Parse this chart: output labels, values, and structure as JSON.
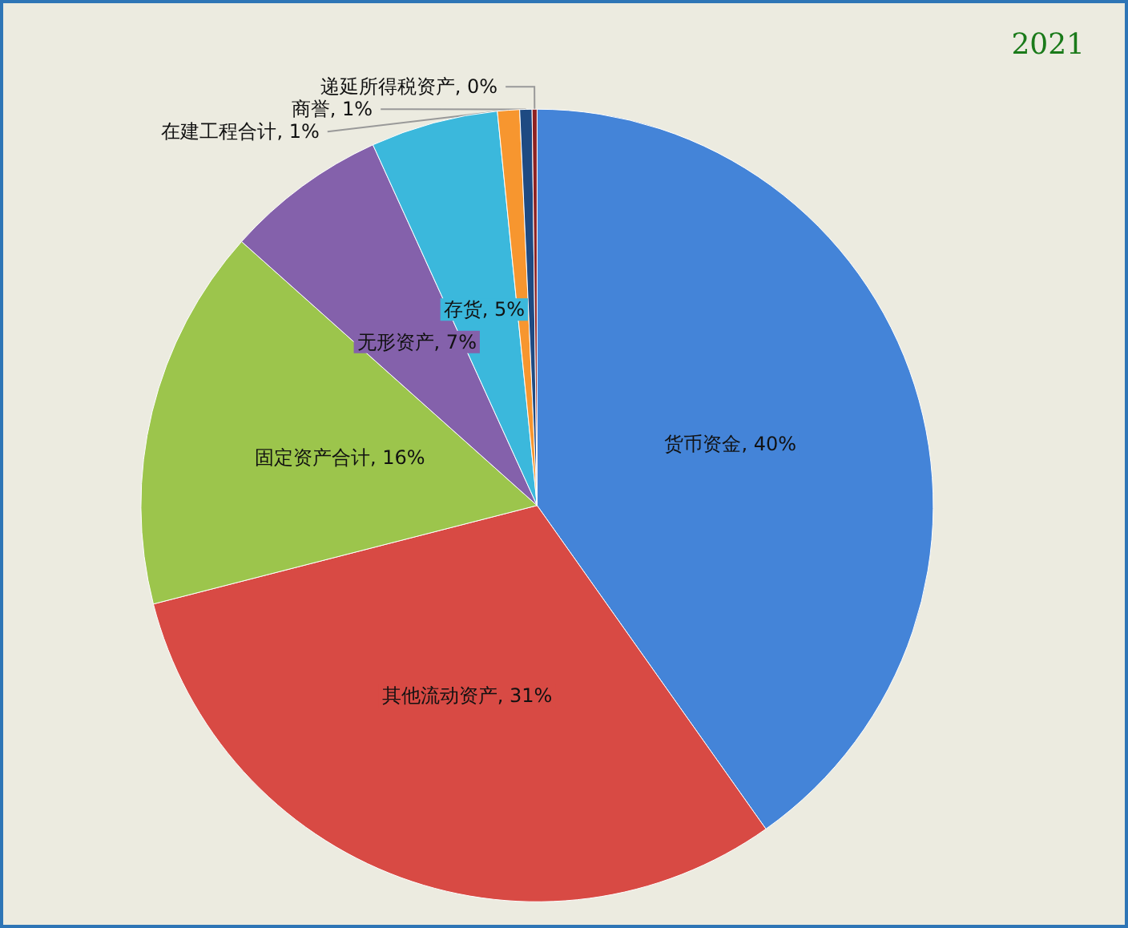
{
  "chart_data": {
    "type": "pie",
    "title": "2021",
    "categories": [
      "货币资金",
      "其他流动资产",
      "固定资产合计",
      "无形资产",
      "存货",
      "在建工程合计",
      "商誉",
      "递延所得税资产"
    ],
    "values": [
      40.2,
      30.8,
      15.6,
      6.6,
      5.2,
      0.9,
      0.5,
      0.2
    ],
    "value_labels": [
      "40%",
      "31%",
      "16%",
      "7%",
      "5%",
      "1%",
      "1%",
      "0%"
    ],
    "colors": [
      "#4484d8",
      "#d84a44",
      "#9cc54c",
      "#8461ab",
      "#3bb8dc",
      "#f7962f",
      "#1e4a82",
      "#8e2222"
    ],
    "legend": false
  }
}
